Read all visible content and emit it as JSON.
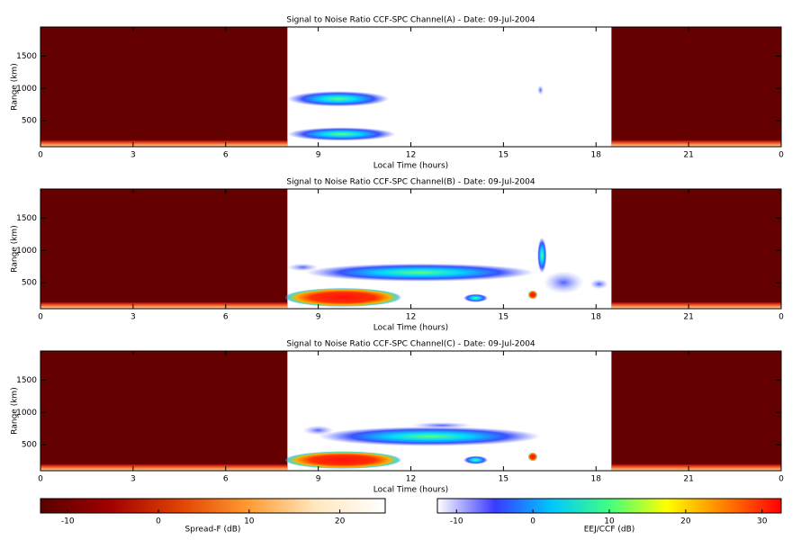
{
  "chart_data": [
    {
      "type": "heatmap",
      "title": "Signal to Noise Ratio CCF-SPC Channel(A) - Date: 09-Jul-2004",
      "xlabel": "Local Time (hours)",
      "ylabel": "Range (km)",
      "xlim": [
        0,
        24
      ],
      "xticks": [
        0,
        3,
        6,
        9,
        12,
        15,
        18,
        21,
        {
          "value": 24,
          "label": "0"
        }
      ],
      "ylim": [
        100,
        1950
      ],
      "yticks": [
        500,
        1000,
        1500
      ]
    },
    {
      "type": "heatmap",
      "title": "Signal to Noise Ratio CCF-SPC Channel(B) - Date: 09-Jul-2004",
      "xlabel": "Local Time (hours)",
      "ylabel": "Range (km)",
      "xlim": [
        0,
        24
      ],
      "xticks": [
        0,
        3,
        6,
        9,
        12,
        15,
        18,
        21,
        {
          "value": 24,
          "label": "0"
        }
      ],
      "ylim": [
        100,
        1950
      ],
      "yticks": [
        500,
        1000,
        1500
      ]
    },
    {
      "type": "heatmap",
      "title": "Signal to Noise Ratio CCF-SPC Channel(C) - Date: 09-Jul-2004",
      "xlabel": "Local Time (hours)",
      "ylabel": "Range (km)",
      "xlim": [
        0,
        24
      ],
      "xticks": [
        0,
        3,
        6,
        9,
        12,
        15,
        18,
        21,
        {
          "value": 24,
          "label": "0"
        }
      ],
      "ylim": [
        100,
        1950
      ],
      "yticks": [
        500,
        1000,
        1500
      ]
    },
    {
      "type": "colorbar",
      "xlabel": "Spread-F (dB)",
      "xlim": [
        -13,
        25
      ],
      "xticks": [
        -10,
        0,
        10,
        20
      ],
      "colors": [
        "#5a0000",
        "#a00000",
        "#e04000",
        "#ff9a30",
        "#ffe8c0",
        "#ffffff"
      ]
    },
    {
      "type": "colorbar",
      "xlabel": "EEJ/CCF (dB)",
      "xlim": [
        -12.5,
        32.5
      ],
      "xticks": [
        -10,
        0,
        10,
        20,
        30
      ],
      "colors": [
        "#ffffff",
        "#3a3aff",
        "#00c8ff",
        "#40ff80",
        "#ffff00",
        "#ff8000",
        "#ff0000"
      ]
    }
  ]
}
